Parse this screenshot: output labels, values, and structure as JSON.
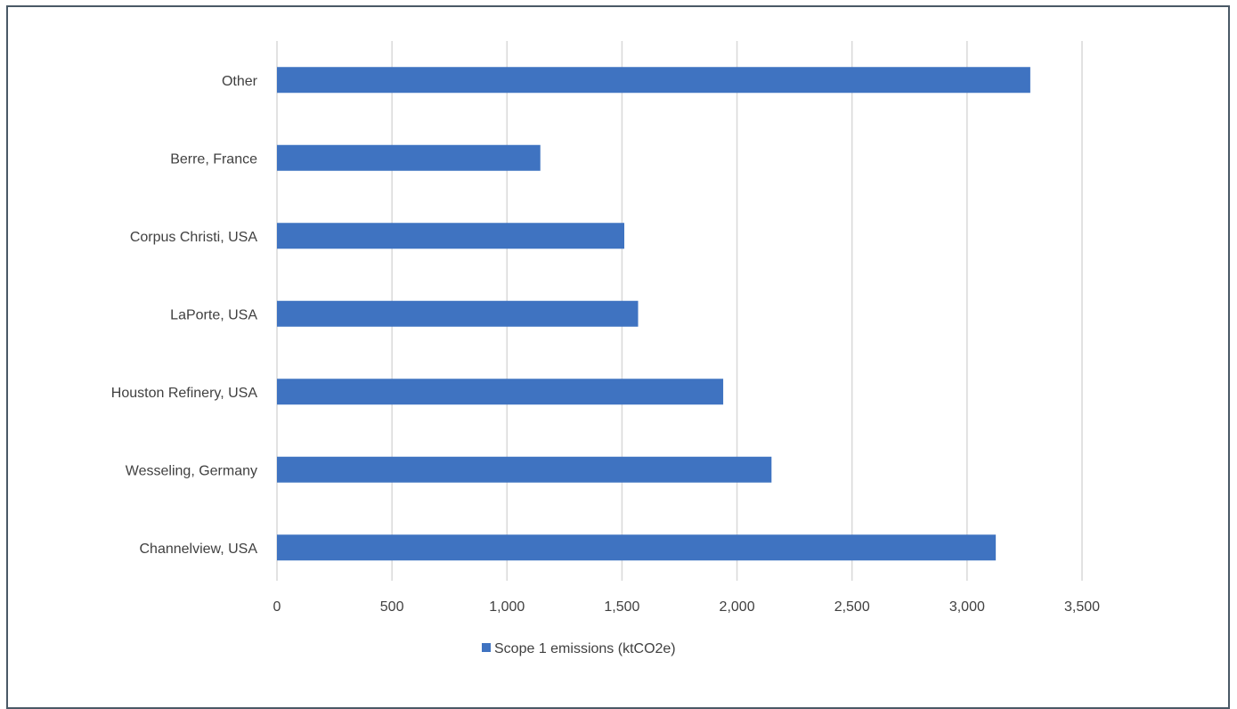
{
  "chart_data": {
    "type": "bar",
    "orientation": "horizontal",
    "categories": [
      "Other",
      "Berre, France",
      "Corpus Christi, USA",
      "LaPorte, USA",
      "Houston Refinery, USA",
      "Wesseling, Germany",
      "Channelview, USA"
    ],
    "series": [
      {
        "name": "Scope 1 emissions (ktCO2e)",
        "color": "#3f73c1",
        "values": [
          3275,
          1145,
          1510,
          1570,
          1940,
          2150,
          3125
        ]
      }
    ],
    "xlim": [
      0,
      3500
    ],
    "xticks": [
      0,
      500,
      1000,
      1500,
      2000,
      2500,
      3000,
      3500
    ],
    "xtick_labels": [
      "0",
      "500",
      "1,000",
      "1,500",
      "2,000",
      "2,500",
      "3,000",
      "3,500"
    ],
    "grid": "vertical",
    "grid_color": "#d9d9d9",
    "legend": "bottom-center",
    "title": "",
    "xlabel": "",
    "ylabel": ""
  }
}
